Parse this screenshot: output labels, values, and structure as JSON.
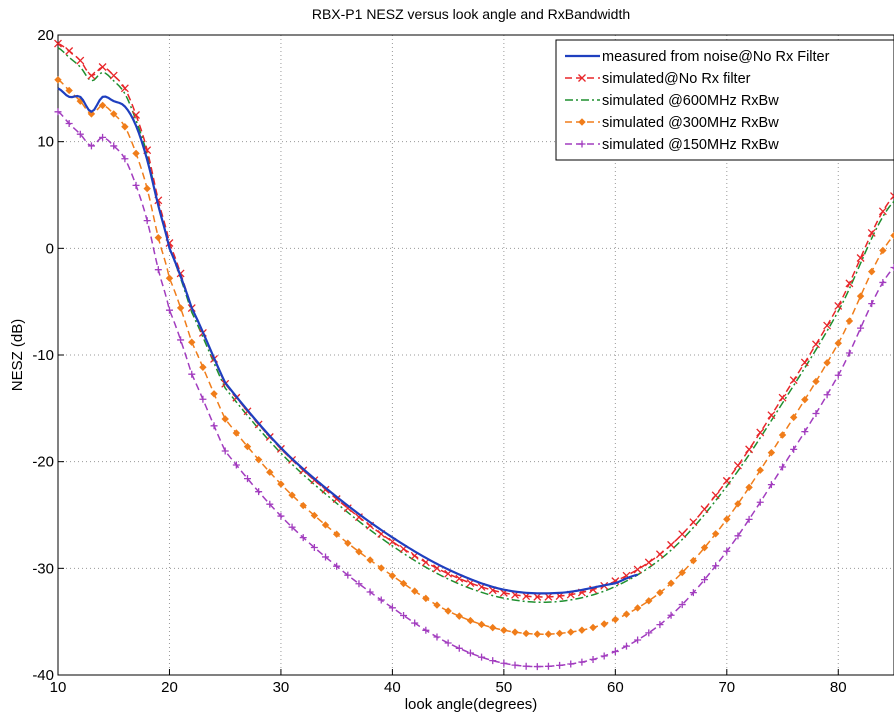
{
  "chart_data": {
    "type": "line",
    "title": "RBX-P1 NESZ versus look angle and RxBandwidth",
    "xlabel": "look angle(degrees)",
    "ylabel": "NESZ (dB)",
    "xlim": [
      10,
      85
    ],
    "ylim": [
      -40,
      20
    ],
    "xticks": [
      10,
      20,
      30,
      40,
      50,
      60,
      70,
      80
    ],
    "yticks": [
      20,
      10,
      0,
      -10,
      -20,
      -30,
      -40
    ],
    "grid": true,
    "legend_position": "top-right",
    "series": [
      {
        "name": "measured from noise@No Rx Filter",
        "color": "#1f3fbf",
        "style": "solid",
        "marker": "none",
        "x": [
          10,
          11,
          12,
          13,
          14,
          15,
          16,
          17,
          18,
          19,
          20,
          22,
          25,
          30,
          35,
          40,
          45,
          50,
          55,
          60,
          62
        ],
        "y": [
          15,
          14.2,
          14.2,
          12.8,
          14.2,
          13.8,
          13.3,
          11.5,
          8.3,
          4,
          0,
          -5.6,
          -12.6,
          -18.7,
          -23.3,
          -27.1,
          -30.1,
          -32,
          -32.3,
          -31.4,
          -30.6
        ]
      },
      {
        "name": "simulated@No Rx filter",
        "color": "#e8262a",
        "style": "dash",
        "marker": "x",
        "x": [
          10,
          11,
          12,
          13,
          14,
          15,
          16,
          17,
          18,
          19,
          20,
          22,
          25,
          30,
          35,
          40,
          45,
          50,
          55,
          60,
          65,
          70,
          75,
          80,
          85
        ],
        "y": [
          19.2,
          18.5,
          17.6,
          16.2,
          17,
          16.2,
          15,
          12.5,
          9.2,
          4.5,
          0.5,
          -5.6,
          -12.7,
          -18.8,
          -23.5,
          -27.5,
          -30.5,
          -32.3,
          -32.6,
          -31.2,
          -27.8,
          -21.8,
          -14,
          -5.4,
          4.9
        ]
      },
      {
        "name": "simulated @600MHz RxBw",
        "color": "#1f8f2f",
        "style": "dashdot",
        "marker": "none",
        "x": [
          10,
          11,
          12,
          13,
          14,
          15,
          16,
          17,
          18,
          19,
          20,
          22,
          25,
          30,
          35,
          40,
          45,
          50,
          55,
          60,
          65,
          70,
          75,
          80,
          85
        ],
        "y": [
          18.8,
          17.9,
          17,
          15.7,
          16.5,
          15.7,
          14.5,
          12,
          8.8,
          4,
          0,
          -6,
          -13.1,
          -19.2,
          -23.9,
          -27.9,
          -31,
          -32.8,
          -33.1,
          -31.7,
          -28.3,
          -22.3,
          -14.5,
          -5.9,
          4.4
        ]
      },
      {
        "name": "simulated @300MHz RxBw",
        "color": "#f07d1a",
        "style": "dash",
        "marker": "diamond",
        "x": [
          10,
          11,
          12,
          13,
          14,
          15,
          16,
          17,
          18,
          19,
          20,
          22,
          25,
          30,
          35,
          40,
          45,
          50,
          55,
          60,
          65,
          70,
          75,
          80,
          85
        ],
        "y": [
          15.8,
          14.8,
          13.8,
          12.6,
          13.4,
          12.6,
          11.4,
          8.9,
          5.6,
          1,
          -2.8,
          -8.8,
          -16,
          -22.1,
          -26.8,
          -30.7,
          -34,
          -35.8,
          -36.1,
          -34.8,
          -31.4,
          -25.4,
          -17.5,
          -8.9,
          1.2
        ]
      },
      {
        "name": "simulated @150MHz RxBw",
        "color": "#a23dbf",
        "style": "dash",
        "marker": "plus",
        "x": [
          10,
          11,
          12,
          13,
          14,
          15,
          16,
          17,
          18,
          19,
          20,
          22,
          25,
          30,
          35,
          40,
          45,
          50,
          55,
          60,
          65,
          70,
          75,
          80,
          85
        ],
        "y": [
          12.8,
          11.7,
          10.7,
          9.6,
          10.4,
          9.6,
          8.4,
          5.9,
          2.6,
          -2,
          -5.8,
          -11.8,
          -19,
          -25.1,
          -29.8,
          -33.7,
          -37,
          -38.9,
          -39.1,
          -37.8,
          -34.4,
          -28.4,
          -20.5,
          -11.9,
          -1.8
        ]
      }
    ]
  }
}
